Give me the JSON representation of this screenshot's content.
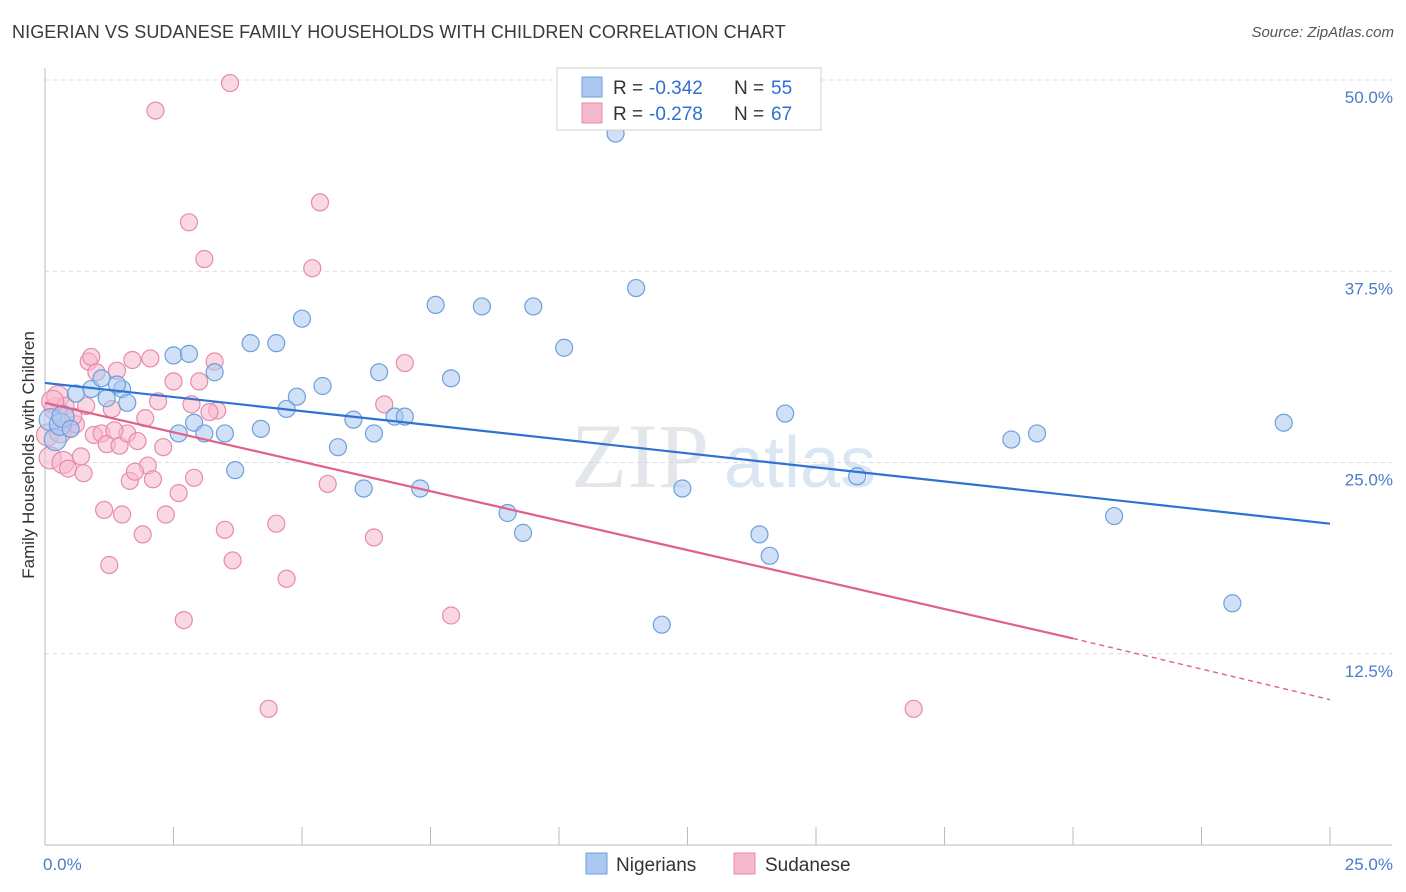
{
  "title": "NIGERIAN VS SUDANESE FAMILY HOUSEHOLDS WITH CHILDREN CORRELATION CHART",
  "source": "Source: ZipAtlas.com",
  "watermark": {
    "zip": "ZIP",
    "atlas": "atlas"
  },
  "colors": {
    "nigerians_fill": "#aac8f0",
    "nigerians_stroke": "#6f9fdc",
    "nigerians_line": "#2f73d2",
    "sudanese_fill": "#f5b8cc",
    "sudanese_stroke": "#e88aaa",
    "sudanese_line": "#e0608e",
    "grid": "#dcdcdc",
    "axis_text": "#4a7cc7"
  },
  "legend": {
    "r_label": "R = ",
    "n_label": "N = ",
    "entries": [
      {
        "r": "-0.342",
        "n": "55"
      },
      {
        "r": "-0.278",
        "n": "67"
      }
    ]
  },
  "chart_data": {
    "type": "scatter",
    "title": "NIGERIAN VS SUDANESE FAMILY HOUSEHOLDS WITH CHILDREN CORRELATION CHART",
    "xlabel": "",
    "ylabel": "Family Households with Children",
    "xlim": [
      0,
      25
    ],
    "ylim": [
      0,
      50
    ],
    "x_tick_labels": [
      "0.0%",
      "25.0%"
    ],
    "y_ticks": [
      12.5,
      25.0,
      37.5,
      50.0
    ],
    "y_tick_labels": [
      "12.5%",
      "25.0%",
      "37.5%",
      "50.0%"
    ],
    "grid": true,
    "legend_position": "top-center",
    "series": [
      {
        "name": "Nigerians",
        "r": -0.342,
        "n": 55,
        "trend": {
          "x": [
            0,
            25
          ],
          "y": [
            30.2,
            21.0
          ]
        },
        "points": [
          [
            0.1,
            27.8
          ],
          [
            0.2,
            26.5
          ],
          [
            0.3,
            27.5
          ],
          [
            0.35,
            28.0
          ],
          [
            0.5,
            27.2
          ],
          [
            0.9,
            29.8
          ],
          [
            1.1,
            30.5
          ],
          [
            1.2,
            29.2
          ],
          [
            1.5,
            29.8
          ],
          [
            1.6,
            28.9
          ],
          [
            2.5,
            32.0
          ],
          [
            2.6,
            26.9
          ],
          [
            2.8,
            32.1
          ],
          [
            2.9,
            27.6
          ],
          [
            3.1,
            26.9
          ],
          [
            3.3,
            30.9
          ],
          [
            3.5,
            26.9
          ],
          [
            3.7,
            24.5
          ],
          [
            4.0,
            32.8
          ],
          [
            4.2,
            27.2
          ],
          [
            4.5,
            32.8
          ],
          [
            4.7,
            28.5
          ],
          [
            5.0,
            34.4
          ],
          [
            5.4,
            30.0
          ],
          [
            5.7,
            26.0
          ],
          [
            6.0,
            27.8
          ],
          [
            6.2,
            23.3
          ],
          [
            6.4,
            26.9
          ],
          [
            6.5,
            30.9
          ],
          [
            6.8,
            28.0
          ],
          [
            7.0,
            28.0
          ],
          [
            7.3,
            23.3
          ],
          [
            7.6,
            35.3
          ],
          [
            7.9,
            30.5
          ],
          [
            8.5,
            35.2
          ],
          [
            9.0,
            21.7
          ],
          [
            9.3,
            20.4
          ],
          [
            9.5,
            35.2
          ],
          [
            10.1,
            32.5
          ],
          [
            11.1,
            46.5
          ],
          [
            11.5,
            36.4
          ],
          [
            12.0,
            14.4
          ],
          [
            12.4,
            23.3
          ],
          [
            13.9,
            20.3
          ],
          [
            14.1,
            18.9
          ],
          [
            14.4,
            28.2
          ],
          [
            15.8,
            24.1
          ],
          [
            18.8,
            26.5
          ],
          [
            19.3,
            26.9
          ],
          [
            20.8,
            21.5
          ],
          [
            23.1,
            15.8
          ],
          [
            24.1,
            27.6
          ],
          [
            0.6,
            29.5
          ],
          [
            1.4,
            30.1
          ],
          [
            4.9,
            29.3
          ]
        ]
      },
      {
        "name": "Sudanese",
        "r": -0.278,
        "n": 67,
        "trend": {
          "x": [
            0,
            20,
            25
          ],
          "y": [
            28.9,
            13.5,
            9.5
          ],
          "dashed_from_x": 20
        },
        "points": [
          [
            0.05,
            26.8
          ],
          [
            0.1,
            25.3
          ],
          [
            0.2,
            28.5
          ],
          [
            0.25,
            29.3
          ],
          [
            0.3,
            27.0
          ],
          [
            0.35,
            25.0
          ],
          [
            0.4,
            28.7
          ],
          [
            0.45,
            24.6
          ],
          [
            0.5,
            27.2
          ],
          [
            0.6,
            27.5
          ],
          [
            0.7,
            25.4
          ],
          [
            0.75,
            24.3
          ],
          [
            0.8,
            28.7
          ],
          [
            0.85,
            31.6
          ],
          [
            0.9,
            31.9
          ],
          [
            0.95,
            26.8
          ],
          [
            1.0,
            30.9
          ],
          [
            1.1,
            26.9
          ],
          [
            1.15,
            21.9
          ],
          [
            1.2,
            26.2
          ],
          [
            1.25,
            18.3
          ],
          [
            1.3,
            28.5
          ],
          [
            1.4,
            31.0
          ],
          [
            1.45,
            26.1
          ],
          [
            1.5,
            21.6
          ],
          [
            1.6,
            26.9
          ],
          [
            1.65,
            23.8
          ],
          [
            1.7,
            31.7
          ],
          [
            1.8,
            26.4
          ],
          [
            1.9,
            20.3
          ],
          [
            1.95,
            27.9
          ],
          [
            2.0,
            24.8
          ],
          [
            2.05,
            31.8
          ],
          [
            2.1,
            23.9
          ],
          [
            2.15,
            48.0
          ],
          [
            2.2,
            29.0
          ],
          [
            2.3,
            26.0
          ],
          [
            2.35,
            21.6
          ],
          [
            2.5,
            30.3
          ],
          [
            2.6,
            23.0
          ],
          [
            2.7,
            14.7
          ],
          [
            2.8,
            40.7
          ],
          [
            2.85,
            28.8
          ],
          [
            2.9,
            24.0
          ],
          [
            3.0,
            30.3
          ],
          [
            3.1,
            38.3
          ],
          [
            3.3,
            31.6
          ],
          [
            3.35,
            28.4
          ],
          [
            3.5,
            20.6
          ],
          [
            3.65,
            18.6
          ],
          [
            3.6,
            49.8
          ],
          [
            4.35,
            8.9
          ],
          [
            4.5,
            21.0
          ],
          [
            4.7,
            17.4
          ],
          [
            5.2,
            37.7
          ],
          [
            5.35,
            42.0
          ],
          [
            5.5,
            23.6
          ],
          [
            6.4,
            20.1
          ],
          [
            6.6,
            28.8
          ],
          [
            7.0,
            31.5
          ],
          [
            7.9,
            15.0
          ],
          [
            16.9,
            8.9
          ],
          [
            0.15,
            29.0
          ],
          [
            0.55,
            28.0
          ],
          [
            1.35,
            27.1
          ],
          [
            1.75,
            24.4
          ],
          [
            3.2,
            28.3
          ]
        ]
      }
    ]
  },
  "bottom_legend": [
    "Nigerians",
    "Sudanese"
  ]
}
